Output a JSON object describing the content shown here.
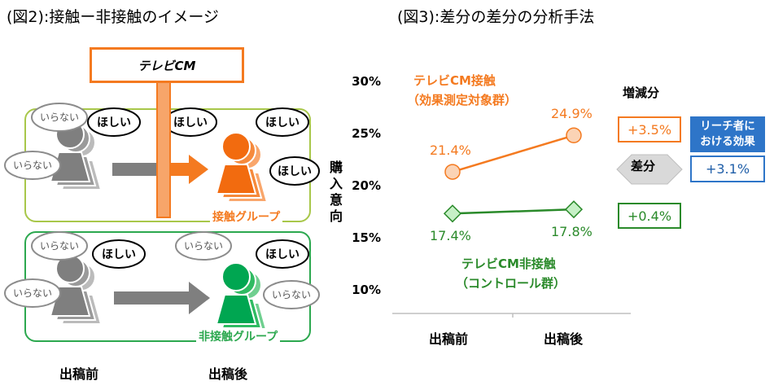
{
  "fig2": {
    "title": "(図2):接触ー非接触のイメージ",
    "tv_cm": "テレビCM",
    "bubble_want": "ほしい",
    "bubble_dont_want": "いらない",
    "contact_group": "接触グループ",
    "noncontact_group": "非接触グループ",
    "before": "出稿前",
    "after": "出稿後",
    "colors": {
      "orange": "#f47a20",
      "green": "#00a651",
      "gray": "#7f7f7f"
    }
  },
  "fig3": {
    "title": "(図3):差分の差分の分析手法",
    "ylabel": "購入意向",
    "series_contact_label_line1": "テレビCM接触",
    "series_contact_label_line2": "（効果測定対象群）",
    "series_noncontact_label_line1": "テレビCM非接触",
    "series_noncontact_label_line2": "（コントロール群）",
    "increase_header": "増減分",
    "delta_contact": "+3.5%",
    "delta_noncontact": "+0.4%",
    "diff_label": "差分",
    "reach_effect_title_line1": "リーチ者に",
    "reach_effect_title_line2": "おける効果",
    "reach_effect_value": "+3.1%"
  },
  "chart_data": {
    "type": "line",
    "categories": [
      "出稿前",
      "出稿後"
    ],
    "series": [
      {
        "name": "テレビCM接触（効果測定対象群）",
        "values": [
          21.4,
          24.9
        ],
        "labels": [
          "21.4%",
          "24.9%"
        ],
        "color": "#f47a20",
        "marker": "circle"
      },
      {
        "name": "テレビCM非接触（コントロール群）",
        "values": [
          17.4,
          17.8
        ],
        "labels": [
          "17.4%",
          "17.8%"
        ],
        "color": "#2a8a2a",
        "marker": "diamond"
      }
    ],
    "ylabel": "購入意向",
    "ylim": [
      10,
      30
    ],
    "yticks": [
      {
        "value": 10,
        "label": "10%"
      },
      {
        "value": 15,
        "label": "15%"
      },
      {
        "value": 20,
        "label": "20%"
      },
      {
        "value": 25,
        "label": "25%"
      },
      {
        "value": 30,
        "label": "30%"
      }
    ],
    "grid": false
  }
}
